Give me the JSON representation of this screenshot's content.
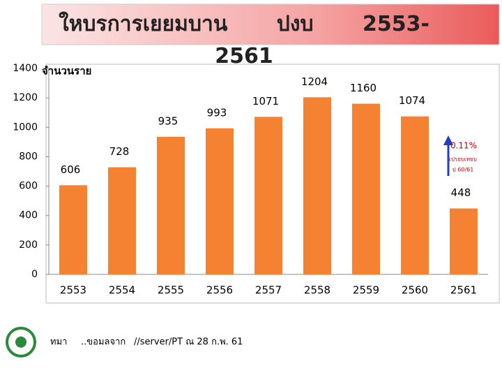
{
  "chart_data": {
    "type": "bar",
    "title": "ใหบรการเยยมบาน ปงบ 2553-2561",
    "y_label": "จำนวนราย",
    "categories": [
      "2553",
      "2554",
      "2555",
      "2556",
      "2557",
      "2558",
      "2559",
      "2560",
      "2561"
    ],
    "values": [
      606,
      728,
      935,
      993,
      1071,
      1204,
      1160,
      1074,
      448
    ],
    "color": "#f58232",
    "ylim": [
      0,
      1400
    ],
    "yticks": [
      0,
      200,
      400,
      600,
      800,
      1000,
      1200,
      1400
    ],
    "grid": false,
    "annotations": [
      "0.11%",
      "เปรยบเทยบ",
      "ป 60/61"
    ],
    "footer": [
      "ทมา",
      "..ขอมลจาก",
      "//server/PT ณ 28 ก.พ. 61"
    ]
  }
}
